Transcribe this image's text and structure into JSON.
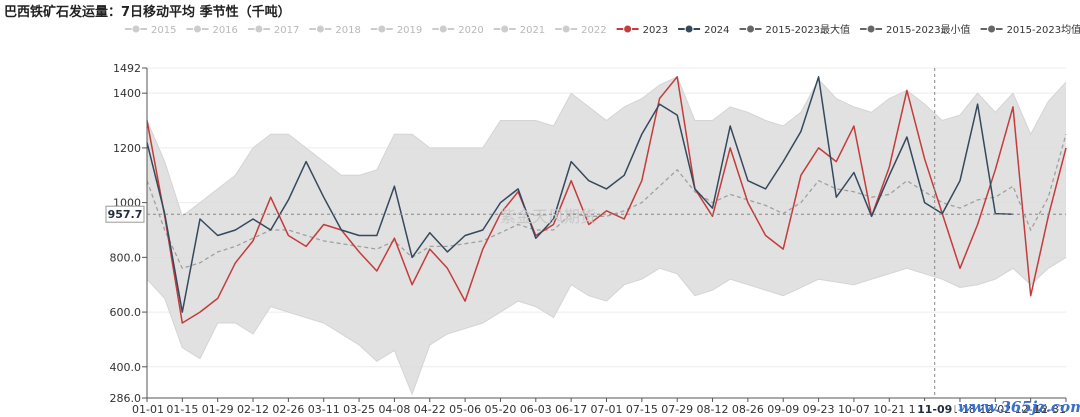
{
  "title": "巴西铁矿石发运量：7日移动平均 季节性（千吨）",
  "watermark": "紫金天风期货",
  "site_mark": "www.365jz.com",
  "crosshair": {
    "y_value": "957.7",
    "x_value": "11-09"
  },
  "colors": {
    "y2023": "#c43c3c",
    "y2024": "#34495e",
    "band": "#dcdcdc",
    "mean": "#a0a0a0",
    "inactive": "#cccccc",
    "range_marker": "#666666"
  },
  "chart_data": {
    "type": "line",
    "title": "巴西铁矿石发运量：7日移动平均 季节性（千吨）",
    "xlabel": "",
    "ylabel": "",
    "ylim": [
      286,
      1492
    ],
    "y_ticks": [
      "286.0",
      "400.0",
      "600.0",
      "800.0",
      "1000",
      "1200",
      "1400",
      "1492"
    ],
    "x_ticks": [
      "01-01",
      "01-15",
      "01-29",
      "02-12",
      "02-26",
      "03-11",
      "03-25",
      "04-08",
      "04-22",
      "05-06",
      "05-20",
      "06-03",
      "06-17",
      "07-01",
      "07-15",
      "07-29",
      "08-12",
      "08-26",
      "09-09",
      "09-23",
      "10-07",
      "10-21",
      "11-04",
      "11-18",
      "12-02",
      "12-16",
      "12-31"
    ],
    "legend": [
      {
        "name": "2015",
        "active": false
      },
      {
        "name": "2016",
        "active": false
      },
      {
        "name": "2017",
        "active": false
      },
      {
        "name": "2018",
        "active": false
      },
      {
        "name": "2019",
        "active": false
      },
      {
        "name": "2020",
        "active": false
      },
      {
        "name": "2021",
        "active": false
      },
      {
        "name": "2022",
        "active": false
      },
      {
        "name": "2023",
        "active": true
      },
      {
        "name": "2024",
        "active": true
      },
      {
        "name": "2015-2023最大值",
        "active": true
      },
      {
        "name": "2015-2023最小值",
        "active": true
      },
      {
        "name": "2015-2023均值",
        "active": true
      }
    ],
    "x_days": [
      1,
      8,
      15,
      22,
      29,
      36,
      43,
      50,
      57,
      64,
      71,
      78,
      85,
      92,
      99,
      106,
      113,
      120,
      127,
      134,
      141,
      148,
      155,
      162,
      169,
      176,
      183,
      190,
      197,
      204,
      211,
      218,
      225,
      232,
      239,
      246,
      253,
      260,
      267,
      274,
      281,
      288,
      295,
      302,
      309,
      316,
      323,
      330,
      337,
      344,
      351,
      358,
      365
    ],
    "series": [
      {
        "name": "2023",
        "values": [
          1300,
          950,
          560,
          600,
          650,
          780,
          860,
          1020,
          880,
          840,
          920,
          900,
          820,
          750,
          870,
          700,
          830,
          760,
          640,
          830,
          960,
          1040,
          880,
          920,
          1080,
          920,
          970,
          940,
          1080,
          1380,
          1460,
          1050,
          950,
          1200,
          1000,
          880,
          830,
          1100,
          1200,
          1150,
          1280,
          950,
          1130,
          1410,
          1160,
          960,
          760,
          920,
          1120,
          1350,
          660,
          950,
          1200
        ]
      },
      {
        "name": "2024",
        "values": [
          1220,
          960,
          600,
          940,
          880,
          900,
          940,
          900,
          1010,
          1150,
          1020,
          900,
          880,
          880,
          1060,
          800,
          890,
          820,
          880,
          900,
          1000,
          1050,
          870,
          940,
          1150,
          1080,
          1050,
          1100,
          1250,
          1360,
          1320,
          1050,
          980,
          1280,
          1080,
          1050,
          1150,
          1260,
          1460,
          1020,
          1110,
          950,
          1100,
          1240,
          1000,
          960,
          1080,
          1360,
          960,
          957.7
        ]
      },
      {
        "name": "2015-2023最大值",
        "values": [
          1300,
          1150,
          950,
          1000,
          1050,
          1100,
          1200,
          1250,
          1250,
          1200,
          1150,
          1100,
          1100,
          1120,
          1250,
          1250,
          1200,
          1200,
          1200,
          1200,
          1300,
          1300,
          1300,
          1280,
          1400,
          1350,
          1300,
          1350,
          1380,
          1430,
          1460,
          1300,
          1300,
          1350,
          1330,
          1300,
          1280,
          1330,
          1450,
          1380,
          1350,
          1330,
          1380,
          1410,
          1360,
          1300,
          1320,
          1400,
          1330,
          1400,
          1250,
          1370,
          1440
        ]
      },
      {
        "name": "2015-2023最小值",
        "values": [
          720,
          650,
          470,
          430,
          560,
          560,
          520,
          620,
          600,
          580,
          560,
          520,
          480,
          420,
          460,
          300,
          480,
          520,
          540,
          560,
          600,
          640,
          620,
          580,
          700,
          660,
          640,
          700,
          720,
          760,
          740,
          660,
          680,
          720,
          700,
          680,
          660,
          690,
          720,
          710,
          700,
          720,
          740,
          760,
          740,
          720,
          690,
          700,
          720,
          760,
          700,
          760,
          800
        ]
      },
      {
        "name": "2015-2023均值",
        "values": [
          1080,
          900,
          760,
          780,
          820,
          840,
          870,
          900,
          900,
          880,
          860,
          850,
          840,
          830,
          860,
          800,
          840,
          840,
          850,
          860,
          890,
          920,
          900,
          900,
          960,
          950,
          950,
          970,
          1000,
          1060,
          1120,
          1040,
          1000,
          1030,
          1010,
          990,
          960,
          1000,
          1080,
          1050,
          1040,
          1020,
          1030,
          1080,
          1040,
          1000,
          980,
          1010,
          1020,
          1060,
          900,
          1020,
          1250
        ]
      }
    ]
  }
}
